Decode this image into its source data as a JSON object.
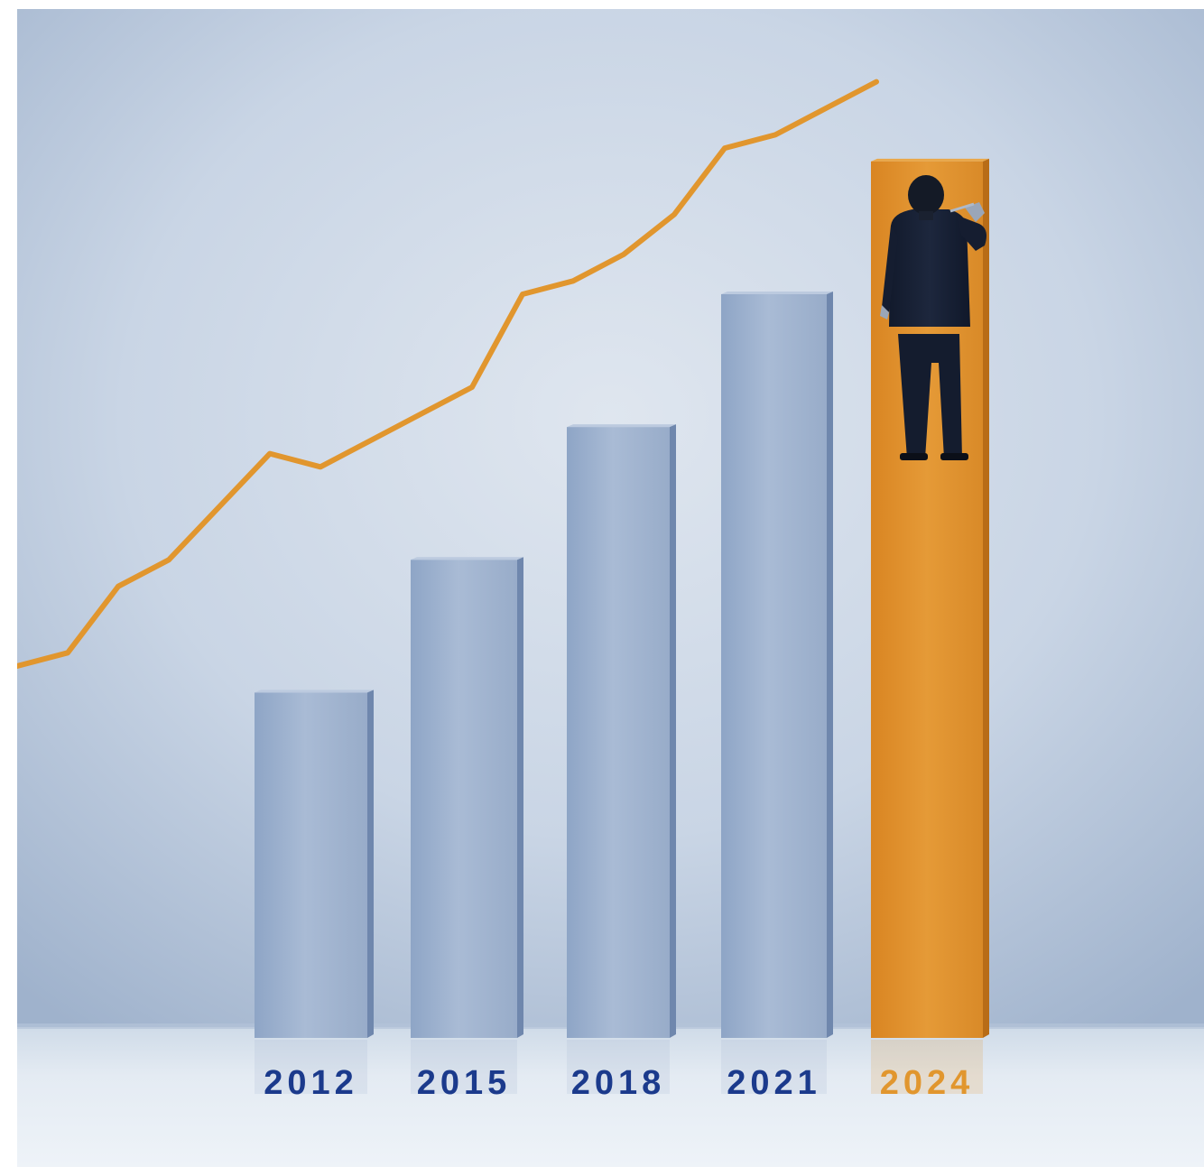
{
  "chart_data": {
    "type": "bar",
    "categories": [
      "2012",
      "2015",
      "2018",
      "2021",
      "2024"
    ],
    "values": [
      26,
      36,
      46,
      56,
      66
    ],
    "ylim": [
      0,
      70
    ],
    "grid": false,
    "trend_line": {
      "name": "",
      "values": [
        28,
        29,
        34,
        36,
        40,
        44,
        43,
        45,
        47,
        49,
        56,
        57,
        59,
        62,
        67,
        68,
        70,
        72
      ]
    },
    "colors": {
      "bar": "#9fb3cf",
      "bar_highlight": "#e1962e",
      "trend_line": "#e1962e",
      "label": "#1b3a8c",
      "label_highlight": "#e1962e",
      "wall": "#c8d4e4",
      "floor": "#e6edf5"
    }
  },
  "figure": {
    "icon": "businessman-drawing-figure"
  }
}
